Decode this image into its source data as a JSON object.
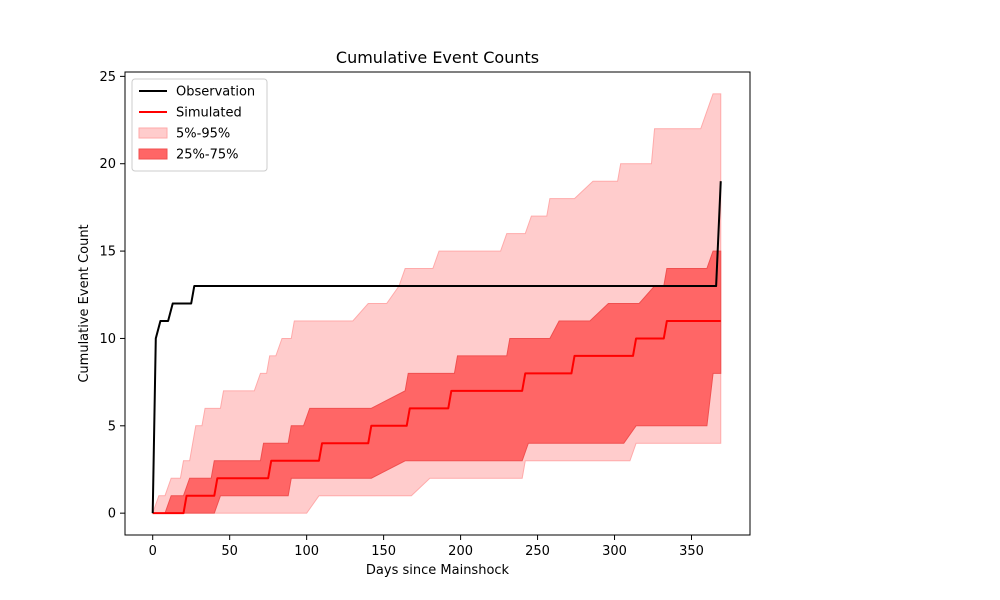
{
  "chart_data": {
    "type": "line",
    "title": "Cumulative Event Counts",
    "xlabel": "Days since Mainshock",
    "ylabel": "Cumulative Event Count",
    "xlim": [
      -18,
      388
    ],
    "ylim": [
      -1.25,
      25.25
    ],
    "xticks": [
      0,
      50,
      100,
      150,
      200,
      250,
      300,
      350
    ],
    "yticks": [
      0,
      5,
      10,
      15,
      20,
      25
    ],
    "grid": false,
    "legend_position": "top-left",
    "legend": [
      {
        "label": "Observation",
        "kind": "line",
        "color": "#000000"
      },
      {
        "label": "Simulated",
        "kind": "line",
        "color": "#ff0000"
      },
      {
        "label": "5%-95%",
        "kind": "band",
        "color": "#ffcccc"
      },
      {
        "label": "25%-75%",
        "kind": "band",
        "color": "#ff6666"
      }
    ],
    "colors": {
      "observation": "#000000",
      "simulated": "#ff0000",
      "band_outer": "#ffcccc",
      "band_outer_edge": "#ffaaaa",
      "band_inner": "#ff6666",
      "band_inner_edge": "#f05050"
    },
    "series": [
      {
        "name": "Observation",
        "x": [
          0,
          2,
          5,
          8,
          10,
          13,
          15,
          17,
          25,
          27,
          29,
          366,
          369
        ],
        "y": [
          0,
          10,
          11,
          11,
          11,
          12,
          12,
          12,
          12,
          13,
          13,
          13,
          19
        ]
      },
      {
        "name": "Simulated",
        "x": [
          0,
          8,
          9,
          20,
          22,
          40,
          42,
          75,
          77,
          108,
          110,
          140,
          142,
          165,
          167,
          192,
          194,
          240,
          242,
          272,
          274,
          312,
          314,
          332,
          334,
          369
        ],
        "y": [
          0,
          0,
          0,
          0,
          1,
          1,
          2,
          2,
          3,
          3,
          4,
          4,
          5,
          5,
          6,
          6,
          7,
          7,
          8,
          8,
          9,
          9,
          10,
          10,
          11,
          11
        ]
      },
      {
        "name": "5%-95%",
        "x": [
          0,
          4,
          6,
          8,
          12,
          14,
          16,
          18,
          20,
          22,
          24,
          26,
          28,
          30,
          32,
          34,
          36,
          44,
          46,
          48,
          50,
          52,
          62,
          64,
          66,
          70,
          74,
          76,
          78,
          80,
          84,
          88,
          90,
          92,
          98,
          100,
          108,
          110,
          112,
          120,
          128,
          130,
          140,
          142,
          146,
          150,
          152,
          160,
          164,
          166,
          168,
          180,
          182,
          186,
          196,
          198,
          204,
          224,
          226,
          230,
          240,
          242,
          246,
          256,
          258,
          264,
          272,
          274,
          286,
          288,
          290,
          300,
          302,
          304,
          310,
          314,
          322,
          324,
          326,
          338,
          340,
          350,
          352,
          354,
          356,
          360,
          364,
          369
        ],
        "upper": [
          0,
          1,
          1,
          1,
          2,
          2,
          2,
          2,
          3,
          3,
          3,
          4,
          5,
          5,
          5,
          6,
          6,
          6,
          7,
          7,
          7,
          7,
          7,
          7,
          7,
          8,
          8,
          9,
          9,
          9,
          10,
          10,
          10,
          11,
          11,
          11,
          11,
          11,
          11,
          11,
          11,
          11,
          12,
          12,
          12,
          12,
          12,
          13,
          14,
          14,
          14,
          14,
          14,
          15,
          15,
          15,
          15,
          15,
          15,
          16,
          16,
          16,
          17,
          17,
          18,
          18,
          18,
          18,
          19,
          19,
          19,
          19,
          19,
          20,
          20,
          20,
          20,
          20,
          22,
          22,
          22,
          22,
          22,
          22,
          22,
          23,
          24,
          24
        ],
        "lower": [
          0,
          0,
          0,
          0,
          0,
          0,
          0,
          0,
          0,
          0,
          0,
          0,
          0,
          0,
          0,
          0,
          0,
          0,
          0,
          0,
          0,
          0,
          0,
          0,
          0,
          0,
          0,
          0,
          0,
          0,
          0,
          0,
          0,
          0,
          0,
          0,
          1,
          1,
          1,
          1,
          1,
          1,
          1,
          1,
          1,
          1,
          1,
          1,
          1,
          1,
          1,
          2,
          2,
          2,
          2,
          2,
          2,
          2,
          2,
          2,
          2,
          3,
          3,
          3,
          3,
          3,
          3,
          3,
          3,
          3,
          3,
          3,
          3,
          3,
          3,
          4,
          4,
          4,
          4,
          4,
          4,
          4,
          4,
          4,
          4,
          4,
          4,
          4
        ]
      },
      {
        "name": "25%-75%",
        "x": [
          0,
          6,
          8,
          12,
          16,
          20,
          24,
          34,
          38,
          40,
          44,
          70,
          72,
          80,
          88,
          90,
          98,
          102,
          108,
          110,
          140,
          142,
          164,
          166,
          184,
          186,
          196,
          198,
          230,
          232,
          240,
          244,
          256,
          258,
          264,
          266,
          272,
          282,
          284,
          296,
          298,
          300,
          302,
          306,
          314,
          316,
          326,
          328,
          332,
          334,
          344,
          346,
          358,
          360,
          364,
          366,
          369
        ],
        "upper": [
          0,
          0,
          0,
          1,
          1,
          1,
          2,
          2,
          2,
          3,
          3,
          3,
          4,
          4,
          4,
          5,
          5,
          6,
          6,
          6,
          6,
          6,
          7,
          8,
          8,
          8,
          8,
          9,
          9,
          10,
          10,
          10,
          10,
          10,
          11,
          11,
          11,
          11,
          11,
          12,
          12,
          12,
          12,
          12,
          12,
          12,
          13,
          13,
          13,
          14,
          14,
          14,
          14,
          14,
          15,
          15,
          15
        ],
        "lower": [
          0,
          0,
          0,
          0,
          0,
          0,
          0,
          0,
          0,
          0,
          1,
          1,
          1,
          1,
          1,
          2,
          2,
          2,
          2,
          2,
          2,
          2,
          3,
          3,
          3,
          3,
          3,
          3,
          3,
          3,
          3,
          4,
          4,
          4,
          4,
          4,
          4,
          4,
          4,
          4,
          4,
          4,
          4,
          4,
          5,
          5,
          5,
          5,
          5,
          5,
          5,
          5,
          5,
          5,
          8,
          8,
          8
        ]
      }
    ]
  }
}
